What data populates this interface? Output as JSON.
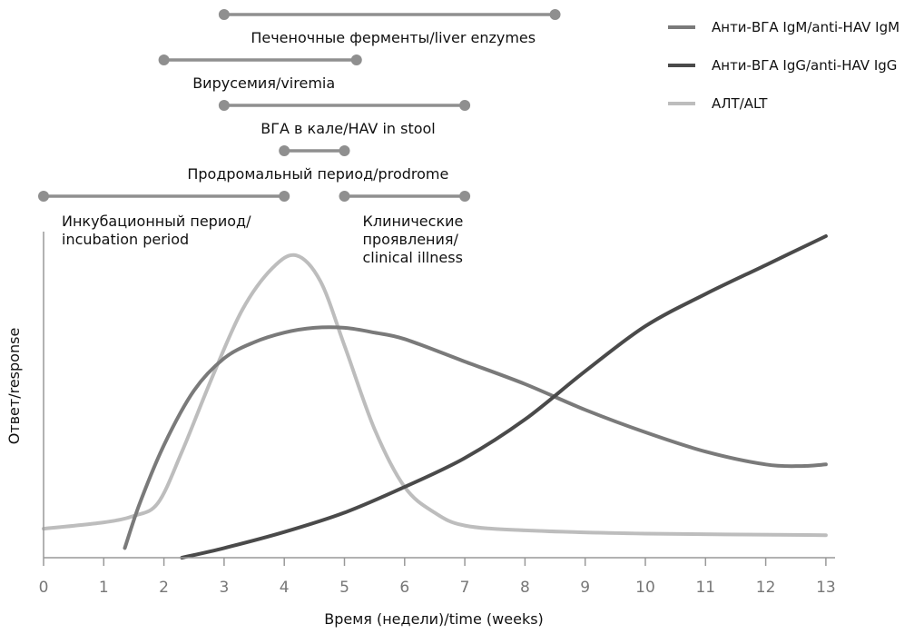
{
  "chart_data": {
    "type": "line",
    "title": "",
    "xlabel": "Время (недели)/time (weeks)",
    "ylabel": "Ответ/response",
    "xlim": [
      0,
      13
    ],
    "x_ticks": [
      0,
      1,
      2,
      3,
      4,
      5,
      6,
      7,
      8,
      9,
      10,
      11,
      12,
      13
    ],
    "grid": false,
    "legend_position": "top-right",
    "series": [
      {
        "name": "Анти-ВГА IgM/anti-HAV IgM",
        "color": "#7a7a7a",
        "points": [
          [
            1.35,
            0.03
          ],
          [
            1.6,
            0.17
          ],
          [
            2.0,
            0.35
          ],
          [
            2.5,
            0.52
          ],
          [
            3.0,
            0.62
          ],
          [
            3.5,
            0.67
          ],
          [
            4.0,
            0.7
          ],
          [
            4.5,
            0.715
          ],
          [
            5.0,
            0.715
          ],
          [
            5.5,
            0.7
          ],
          [
            6.0,
            0.68
          ],
          [
            7.0,
            0.61
          ],
          [
            8.0,
            0.54
          ],
          [
            9.0,
            0.46
          ],
          [
            10.0,
            0.39
          ],
          [
            11.0,
            0.33
          ],
          [
            12.0,
            0.29
          ],
          [
            12.6,
            0.285
          ],
          [
            13.0,
            0.29
          ]
        ]
      },
      {
        "name": "Анти-ВГА IgG/anti-HAV IgG",
        "color": "#4a4a4a",
        "points": [
          [
            2.3,
            0.0
          ],
          [
            3.0,
            0.03
          ],
          [
            4.0,
            0.08
          ],
          [
            5.0,
            0.14
          ],
          [
            6.0,
            0.22
          ],
          [
            7.0,
            0.31
          ],
          [
            8.0,
            0.43
          ],
          [
            9.0,
            0.58
          ],
          [
            10.0,
            0.72
          ],
          [
            11.0,
            0.82
          ],
          [
            12.0,
            0.91
          ],
          [
            13.0,
            1.0
          ]
        ]
      },
      {
        "name": "АЛТ/ALT",
        "color": "#bdbdbd",
        "points": [
          [
            0.0,
            0.09
          ],
          [
            1.0,
            0.11
          ],
          [
            1.5,
            0.13
          ],
          [
            1.9,
            0.17
          ],
          [
            2.3,
            0.33
          ],
          [
            2.8,
            0.56
          ],
          [
            3.3,
            0.77
          ],
          [
            3.8,
            0.9
          ],
          [
            4.2,
            0.94
          ],
          [
            4.6,
            0.86
          ],
          [
            5.0,
            0.66
          ],
          [
            5.5,
            0.4
          ],
          [
            6.0,
            0.22
          ],
          [
            6.5,
            0.14
          ],
          [
            7.0,
            0.1
          ],
          [
            8.0,
            0.085
          ],
          [
            10.0,
            0.075
          ],
          [
            13.0,
            0.07
          ]
        ]
      }
    ],
    "phases": [
      {
        "label": "Печеночные ферменты/liver enzymes",
        "start": 3.0,
        "end": 8.5
      },
      {
        "label": "Вирусемия/viremia",
        "start": 2.0,
        "end": 5.2
      },
      {
        "label": "ВГА в кале/HAV in stool",
        "start": 3.0,
        "end": 7.0
      },
      {
        "label": "Продромальный период/prodrome",
        "start": 4.0,
        "end": 5.0
      },
      {
        "label": [
          "Инкубационный период/",
          "incubation period"
        ],
        "start": 0.0,
        "end": 4.0
      },
      {
        "label": [
          "Клинические",
          "проявления/",
          "clinical illness"
        ],
        "start": 5.0,
        "end": 7.0
      }
    ]
  }
}
